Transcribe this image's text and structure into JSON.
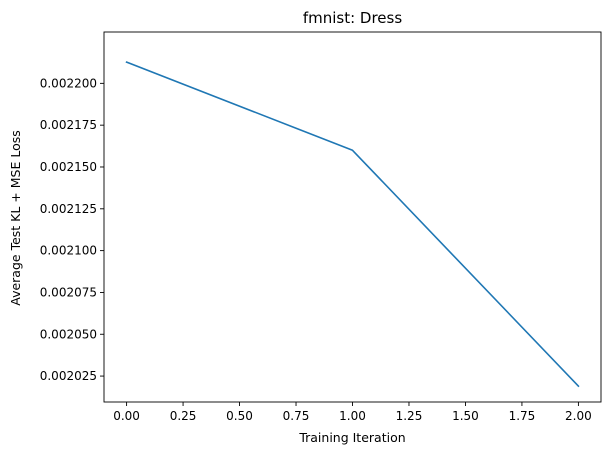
{
  "chart_data": {
    "type": "line",
    "title": "fmnist: Dress",
    "xlabel": "Training Iteration",
    "ylabel": "Average Test KL + MSE Loss",
    "xlim": [
      -0.1,
      2.1
    ],
    "ylim": [
      0.0020095,
      0.0022307
    ],
    "xticks": [
      0.0,
      0.25,
      0.5,
      0.75,
      1.0,
      1.25,
      1.5,
      1.75,
      2.0
    ],
    "xtick_labels": [
      "0.00",
      "0.25",
      "0.50",
      "0.75",
      "1.00",
      "1.25",
      "1.50",
      "1.75",
      "2.00"
    ],
    "yticks": [
      0.002025,
      0.00205,
      0.002075,
      0.0021,
      0.002125,
      0.00215,
      0.002175,
      0.0022
    ],
    "ytick_labels": [
      "0.002025",
      "0.002050",
      "0.002075",
      "0.002100",
      "0.002125",
      "0.002150",
      "0.002175",
      "0.002200"
    ],
    "grid": false,
    "series": [
      {
        "color": "#1f77b4",
        "x": [
          0,
          1,
          2
        ],
        "y": [
          0.0022127,
          0.00216,
          0.002019
        ]
      }
    ]
  }
}
